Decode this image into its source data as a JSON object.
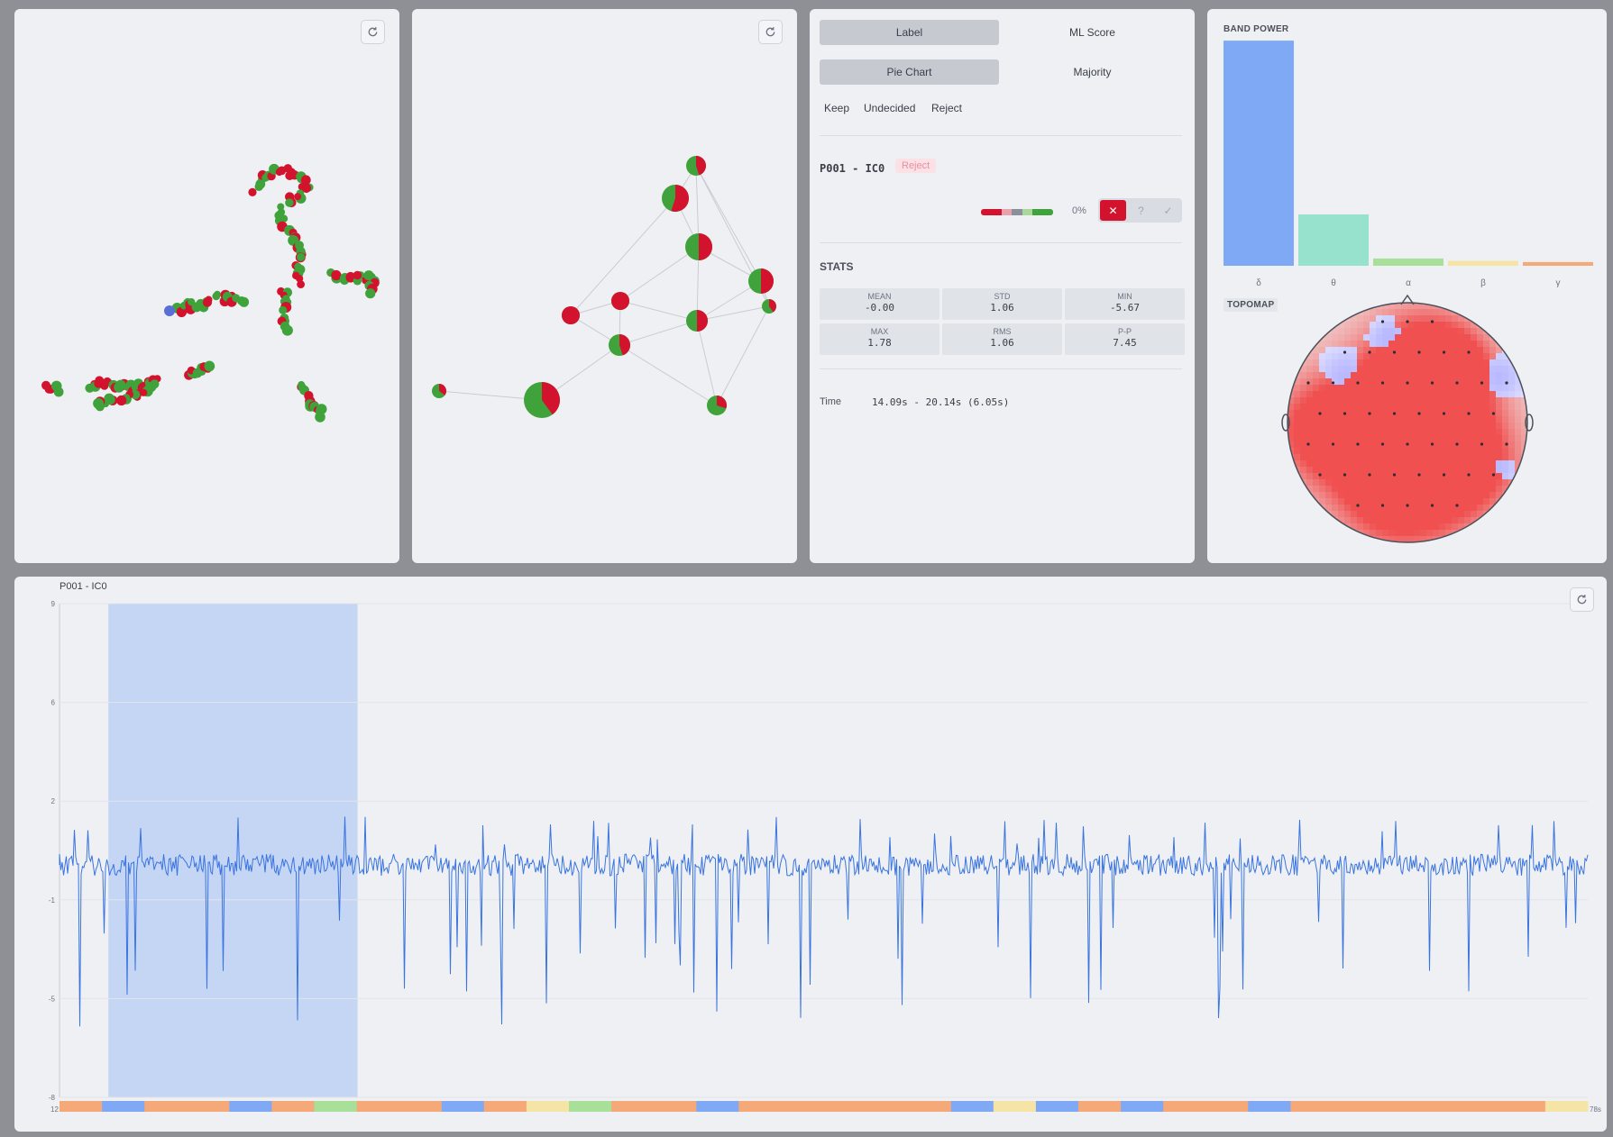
{
  "colors": {
    "reject": "#d3122e",
    "keep": "#3fa23a",
    "accent_blue": "#3a74e0",
    "selection": "#c5d6f4"
  },
  "control": {
    "tabs_row1": [
      {
        "label": "Label",
        "active": true
      },
      {
        "label": "ML Score",
        "active": false
      }
    ],
    "tabs_row2": [
      {
        "label": "Pie Chart",
        "active": true
      },
      {
        "label": "Majority",
        "active": false
      }
    ],
    "filters": [
      "Keep",
      "Undecided",
      "Reject"
    ],
    "component_id": "P001 - IC0",
    "status_badge": "Reject",
    "score_percent": "0%",
    "decision_buttons": {
      "reject": "✕",
      "undecided": "?",
      "keep": "✓"
    },
    "stats_title": "STATS",
    "stats": [
      {
        "label": "MEAN",
        "value": "-0.00"
      },
      {
        "label": "STD",
        "value": "1.06"
      },
      {
        "label": "MIN",
        "value": "-5.67"
      },
      {
        "label": "MAX",
        "value": "1.78"
      },
      {
        "label": "RMS",
        "value": "1.06"
      },
      {
        "label": "P-P",
        "value": "7.45"
      }
    ],
    "time_label": "Time",
    "time_value": "14.09s - 20.14s (6.05s)"
  },
  "band_power": {
    "title": "BAND POWER",
    "bands": [
      "δ",
      "θ",
      "α",
      "β",
      "γ"
    ],
    "values": [
      0.92,
      0.21,
      0.03,
      0.02,
      0.015
    ],
    "colors": [
      "#80a9f5",
      "#96e2cc",
      "#a8e09a",
      "#f5e4a6",
      "#f5a878"
    ]
  },
  "topomap": {
    "title": "TOPOMAP"
  },
  "signal": {
    "title": "P001 - IC0",
    "y_ticks": [
      "9",
      "6",
      "2",
      "-1",
      "-5",
      "-8"
    ],
    "x_start": "12",
    "x_end": "78s",
    "selection": {
      "start_frac": 0.032,
      "end_frac": 0.195
    }
  }
}
